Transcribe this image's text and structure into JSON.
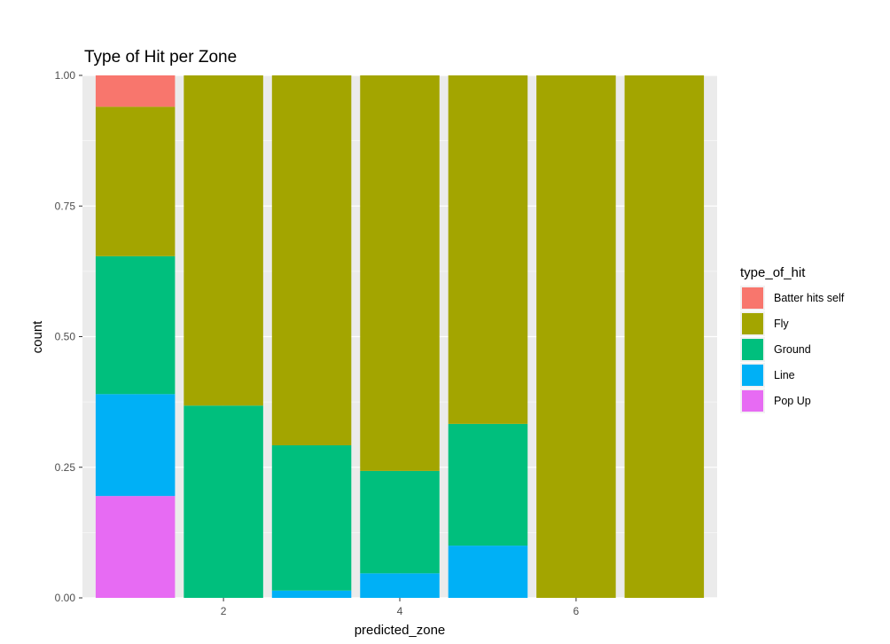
{
  "chart_data": {
    "type": "bar",
    "stacked": "fill",
    "title": "Type of Hit per Zone",
    "xlabel": "predicted_zone",
    "ylabel": "count",
    "x_ticks": [
      2,
      4,
      6
    ],
    "y_ticks": [
      "0.00",
      "0.25",
      "0.50",
      "0.75",
      "1.00"
    ],
    "xlim": [
      0.4,
      7.6
    ],
    "ylim": [
      0,
      1
    ],
    "grid": true,
    "legend": {
      "title": "type_of_hit",
      "position": "right"
    },
    "categories": [
      1,
      2,
      3,
      4,
      5,
      6,
      7
    ],
    "series": [
      {
        "name": "Batter hits self",
        "color": "#F8766D",
        "values": [
          0.06,
          0,
          0,
          0,
          0,
          0,
          0
        ]
      },
      {
        "name": "Fly",
        "color": "#A3A500",
        "values": [
          0.286,
          0.632,
          0.708,
          0.757,
          0.667,
          1.0,
          1.0
        ]
      },
      {
        "name": "Ground",
        "color": "#00BF7D",
        "values": [
          0.264,
          0.368,
          0.278,
          0.196,
          0.233,
          0,
          0
        ]
      },
      {
        "name": "Line",
        "color": "#00B0F6",
        "values": [
          0.195,
          0,
          0.014,
          0.047,
          0.1,
          0,
          0
        ]
      },
      {
        "name": "Pop Up",
        "color": "#E76BF3",
        "values": [
          0.195,
          0,
          0,
          0,
          0,
          0,
          0
        ]
      }
    ]
  }
}
